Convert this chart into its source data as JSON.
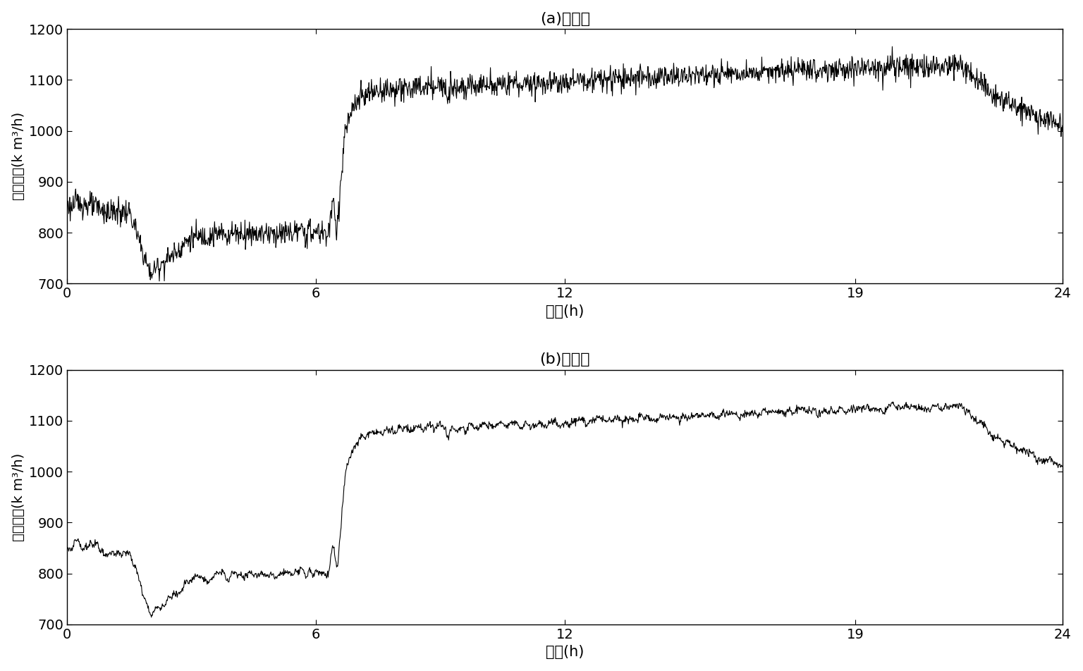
{
  "title_a": "(a)去噪前",
  "title_b": "(b)去噪后",
  "xlabel": "时间(h)",
  "ylabel": "二次风量(k m³/h)",
  "xlim": [
    0,
    24
  ],
  "ylim": [
    700,
    1200
  ],
  "xticks": [
    0,
    6,
    12,
    19,
    24
  ],
  "yticks": [
    700,
    800,
    900,
    1000,
    1100,
    1200
  ],
  "figsize": [
    15.36,
    9.52
  ],
  "dpi": 100,
  "line_color": "#000000",
  "line_width": 0.8,
  "bg_color": "#ffffff"
}
